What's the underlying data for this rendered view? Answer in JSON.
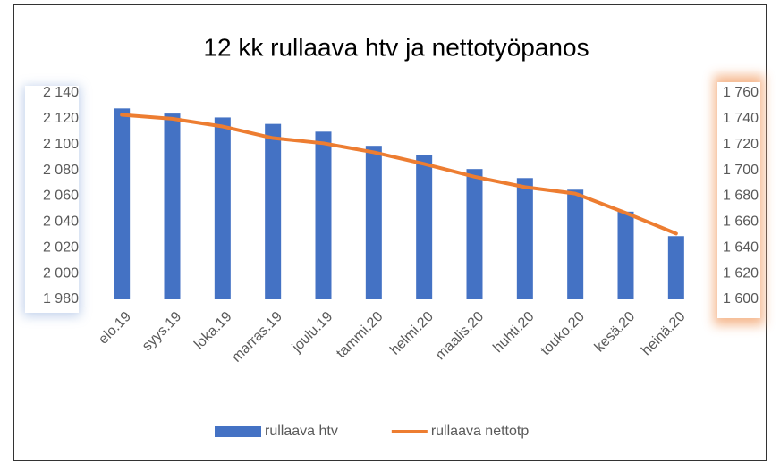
{
  "chart_data": {
    "type": "bar",
    "title": "12 kk rullaava htv ja nettotyöpanos",
    "categories": [
      "elo.19",
      "syys.19",
      "loka.19",
      "marras.19",
      "joulu.19",
      "tammi.20",
      "helmi.20",
      "maalis.20",
      "huhti.20",
      "touko.20",
      "kesä.20",
      "heinä.20"
    ],
    "series": [
      {
        "name": "rullaava htv",
        "type": "bar",
        "color": "#4472c4",
        "values": [
          2128,
          2124,
          2121,
          2116,
          2110,
          2099,
          2092,
          2081,
          2074,
          2065,
          2048,
          2029
        ]
      },
      {
        "name": "rullaava nettotp",
        "type": "line",
        "axis": "y2",
        "color": "#ed7d31",
        "values": [
          1743,
          1740,
          1734,
          1725,
          1721,
          1714,
          1705,
          1695,
          1687,
          1682,
          1667,
          1651
        ]
      }
    ],
    "ylim": [
      1980,
      2140
    ],
    "yticks": [
      {
        "value": 1980,
        "label": "1 980"
      },
      {
        "value": 2000,
        "label": "2 000"
      },
      {
        "value": 2020,
        "label": "2 020"
      },
      {
        "value": 2040,
        "label": "2 040"
      },
      {
        "value": 2060,
        "label": "2 060"
      },
      {
        "value": 2080,
        "label": "2 080"
      },
      {
        "value": 2100,
        "label": "2 100"
      },
      {
        "value": 2120,
        "label": "2 120"
      },
      {
        "value": 2140,
        "label": "2 140"
      }
    ],
    "y2lim": [
      1600,
      1760
    ],
    "y2ticks": [
      {
        "value": 1600,
        "label": "1 600"
      },
      {
        "value": 1620,
        "label": "1 620"
      },
      {
        "value": 1640,
        "label": "1 640"
      },
      {
        "value": 1660,
        "label": "1 660"
      },
      {
        "value": 1680,
        "label": "1 680"
      },
      {
        "value": 1700,
        "label": "1 700"
      },
      {
        "value": 1720,
        "label": "1 720"
      },
      {
        "value": 1740,
        "label": "1 740"
      },
      {
        "value": 1760,
        "label": "1 760"
      }
    ],
    "grid": false,
    "legend": "bottom"
  }
}
